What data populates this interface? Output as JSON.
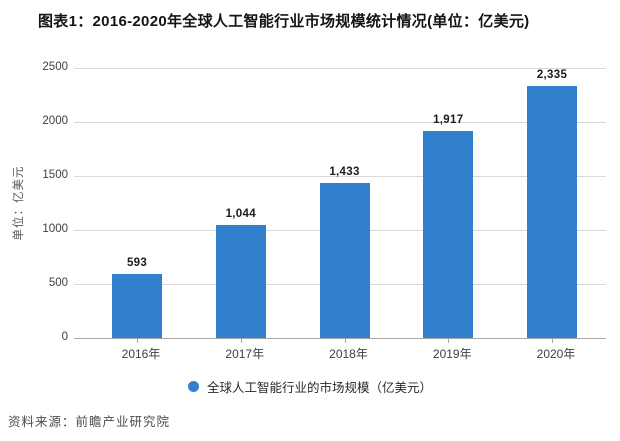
{
  "source": "资料来源：前瞻产业研究院",
  "chart_data": {
    "type": "bar",
    "title": "图表1：2016-2020年全球人工智能行业市场规模统计情况(单位：亿美元)",
    "categories": [
      "2016年",
      "2017年",
      "2018年",
      "2019年",
      "2020年"
    ],
    "values": [
      593,
      1044,
      1433,
      1917,
      2335
    ],
    "value_labels": [
      "593",
      "1,044",
      "1,433",
      "1,917",
      "2,335"
    ],
    "ylabel": "单位：亿美元",
    "xlabel": "",
    "ylim": [
      0,
      2500
    ],
    "yticks": [
      0,
      500,
      1000,
      1500,
      2000,
      2500
    ],
    "grid": true,
    "legend": {
      "position": "bottom",
      "label": "全球人工智能行业的市场规模（亿美元）"
    },
    "bar_color": "#3180CE",
    "gridline_color": "#d9d9d9",
    "axis_line_color": "#a8a8a8"
  }
}
